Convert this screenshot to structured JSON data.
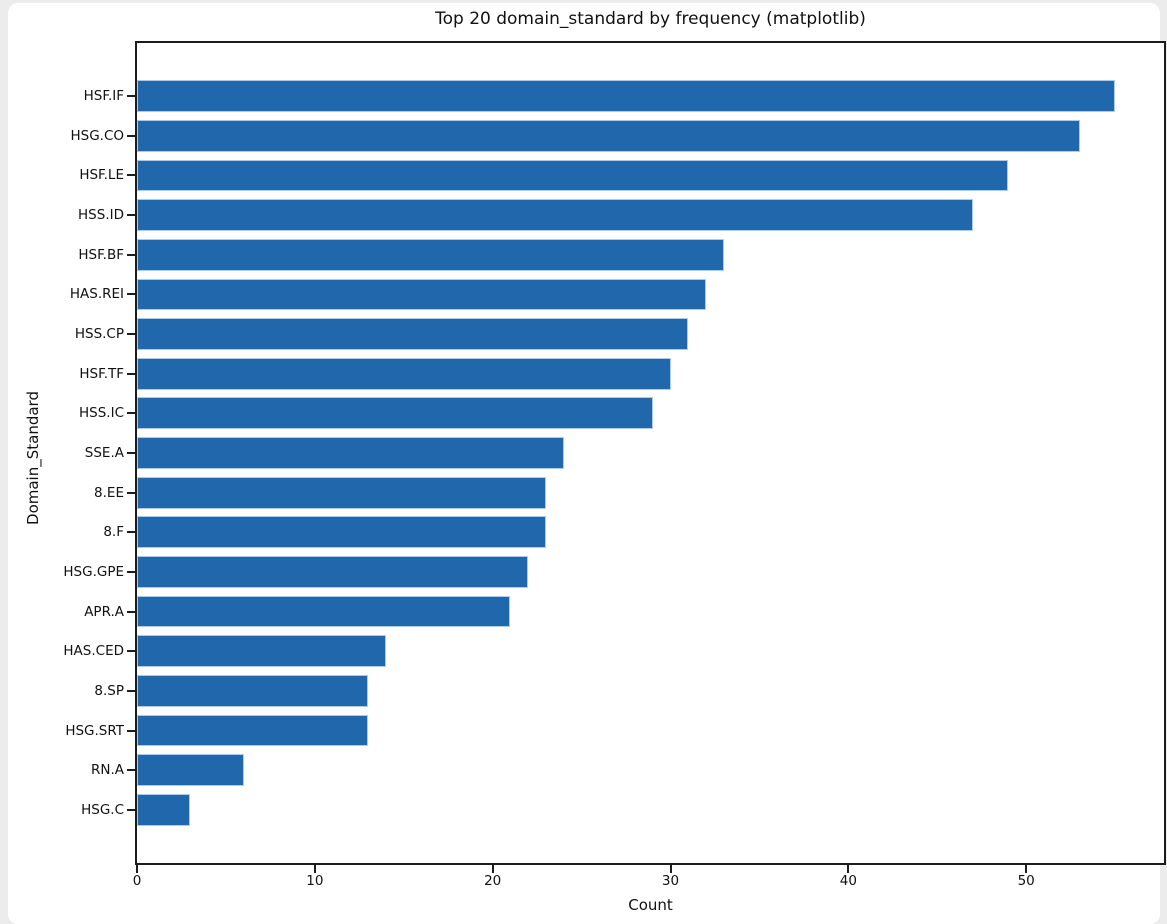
{
  "chart_data": {
    "type": "bar",
    "orientation": "horizontal",
    "title": "Top 20 domain_standard by frequency (matplotlib)",
    "xlabel": "Count",
    "ylabel": "Domain_Standard",
    "categories": [
      "HSF.IF",
      "HSG.CO",
      "HSF.LE",
      "HSS.ID",
      "HSF.BF",
      "HAS.REI",
      "HSS.CP",
      "HSF.TF",
      "HSS.IC",
      "SSE.A",
      "8.EE",
      "8.F",
      "HSG.GPE",
      "APR.A",
      "HAS.CED",
      "8.SP",
      "HSG.SRT",
      "RN.A",
      "HSG.C"
    ],
    "values": [
      55,
      53,
      49,
      47,
      33,
      32,
      31,
      30,
      29,
      24,
      23,
      23,
      22,
      21,
      14,
      13,
      13,
      6,
      3
    ],
    "xticks": [
      0,
      10,
      20,
      30,
      40,
      50
    ],
    "xlim": [
      0,
      57.75
    ],
    "grid": false,
    "legend": null,
    "bar_color": "#2167ac",
    "bar_edge_color": "#aecbe8",
    "spine_color": "#1c1c1c",
    "figure_background": "#ffffff",
    "page_background": "#ececec"
  }
}
